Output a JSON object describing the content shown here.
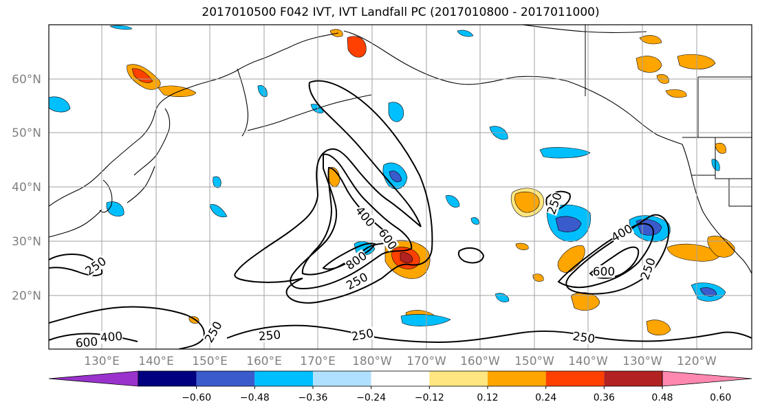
{
  "title": "2017010500 F042 IVT, IVT Landfall PC (2017010800 - 2017011000)",
  "map": {
    "lat_labels": [
      "60°N",
      "50°N",
      "40°N",
      "30°N",
      "20°N"
    ],
    "lon_labels": [
      "130°E",
      "140°E",
      "150°E",
      "160°E",
      "170°E",
      "180°W",
      "170°W",
      "160°W",
      "150°W",
      "140°W",
      "130°W",
      "120°W"
    ],
    "contour_labels": [
      "400",
      "600",
      "800",
      "250",
      "250",
      "250",
      "400",
      "600",
      "250",
      "250",
      "250",
      "400",
      "600",
      "250",
      "250"
    ],
    "colors": {
      "coast": "#000000",
      "grid": "#a0a0a0",
      "label": "#808080",
      "contour": "#000000"
    }
  },
  "colorbar": {
    "tick_labels": [
      "−0.60",
      "−0.48",
      "−0.36",
      "−0.24",
      "−0.12",
      "0.12",
      "0.24",
      "0.36",
      "0.48",
      "0.60"
    ],
    "colors": [
      "#9933cc",
      "#000080",
      "#3a5bcc",
      "#00bfff",
      "#b0e0ff",
      "#ffffff",
      "#ffe680",
      "#ffa500",
      "#ff4000",
      "#b22222",
      "#ff88b0"
    ],
    "extend": "both"
  }
}
